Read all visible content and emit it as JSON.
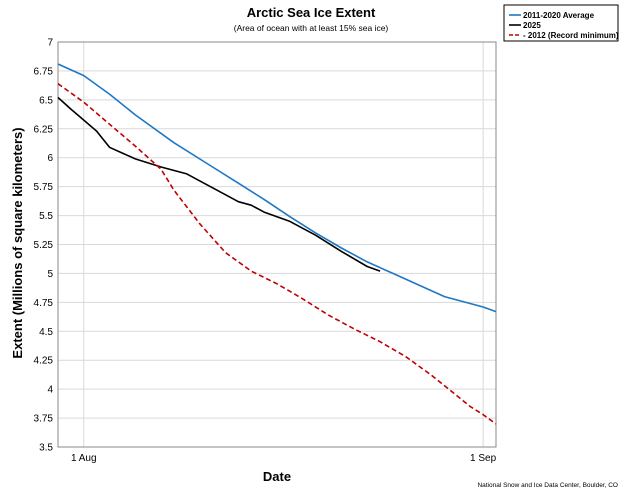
{
  "chart_data": {
    "type": "line",
    "title": "Arctic Sea Ice Extent",
    "subtitle": "(Area of ocean with at least 15% sea ice)",
    "xlabel": "Date",
    "ylabel": "Extent (Millions of square kilometers)",
    "ylim": [
      3.5,
      7
    ],
    "yticks": [
      "3.5",
      "3.75",
      "4",
      "4.25",
      "4.5",
      "4.75",
      "5",
      "5.25",
      "5.5",
      "5.75",
      "6",
      "6.25",
      "6.5",
      "6.75",
      "7"
    ],
    "xlim": [
      "Jul 30",
      "Sep 2"
    ],
    "xticks": [
      {
        "x": "Aug 1",
        "label": "1 Aug"
      },
      {
        "x": "Sep 1",
        "label": "1 Sep"
      }
    ],
    "grid": true,
    "legend_position": "top-right",
    "credit": "National Snow and Ice Data Center, Boulder, CO",
    "series": [
      {
        "name": "2011-2020 Average",
        "color": "#1f77c4",
        "style": "solid",
        "points": [
          [
            "Jul 30",
            6.81
          ],
          [
            "Aug 1",
            6.71
          ],
          [
            "Aug 3",
            6.55
          ],
          [
            "Aug 5",
            6.37
          ],
          [
            "Aug 8",
            6.13
          ],
          [
            "Aug 11",
            5.92
          ],
          [
            "Aug 13",
            5.78
          ],
          [
            "Aug 15",
            5.64
          ],
          [
            "Aug 17",
            5.49
          ],
          [
            "Aug 19",
            5.35
          ],
          [
            "Aug 21",
            5.22
          ],
          [
            "Aug 23",
            5.1
          ],
          [
            "Aug 25",
            5.0
          ],
          [
            "Aug 27",
            4.9
          ],
          [
            "Aug 29",
            4.8
          ],
          [
            "Sep 1",
            4.71
          ],
          [
            "Sep 2",
            4.67
          ]
        ]
      },
      {
        "name": "2025",
        "color": "#000000",
        "style": "solid",
        "points": [
          [
            "Jul 30",
            6.52
          ],
          [
            "Jul 31",
            6.42
          ],
          [
            "Aug 2",
            6.23
          ],
          [
            "Aug 3",
            6.09
          ],
          [
            "Aug 4",
            6.04
          ],
          [
            "Aug 5",
            5.99
          ],
          [
            "Aug 7",
            5.92
          ],
          [
            "Aug 9",
            5.86
          ],
          [
            "Aug 11",
            5.74
          ],
          [
            "Aug 13",
            5.62
          ],
          [
            "Aug 14",
            5.59
          ],
          [
            "Aug 15",
            5.53
          ],
          [
            "Aug 17",
            5.45
          ],
          [
            "Aug 19",
            5.33
          ],
          [
            "Aug 21",
            5.19
          ],
          [
            "Aug 23",
            5.06
          ],
          [
            "Aug 24",
            5.02
          ]
        ]
      },
      {
        "name": "2012 (Record minimum)",
        "color": "#c00000",
        "style": "dashed",
        "points": [
          [
            "Jul 30",
            6.64
          ],
          [
            "Aug 1",
            6.48
          ],
          [
            "Aug 3",
            6.29
          ],
          [
            "Aug 5",
            6.1
          ],
          [
            "Aug 7",
            5.9
          ],
          [
            "Aug 8",
            5.72
          ],
          [
            "Aug 10",
            5.43
          ],
          [
            "Aug 12",
            5.18
          ],
          [
            "Aug 14",
            5.02
          ],
          [
            "Aug 16",
            4.91
          ],
          [
            "Aug 18",
            4.78
          ],
          [
            "Aug 20",
            4.64
          ],
          [
            "Aug 22",
            4.52
          ],
          [
            "Aug 24",
            4.41
          ],
          [
            "Aug 26",
            4.28
          ],
          [
            "Aug 28",
            4.12
          ],
          [
            "Aug 30",
            3.94
          ],
          [
            "Aug 31",
            3.85
          ],
          [
            "Sep 1",
            3.78
          ],
          [
            "Sep 2",
            3.7
          ]
        ]
      }
    ]
  },
  "legend": [
    {
      "label": "2011-2020 Average"
    },
    {
      "label": "2025"
    },
    {
      "label": "- 2012 (Record minimum)"
    }
  ]
}
